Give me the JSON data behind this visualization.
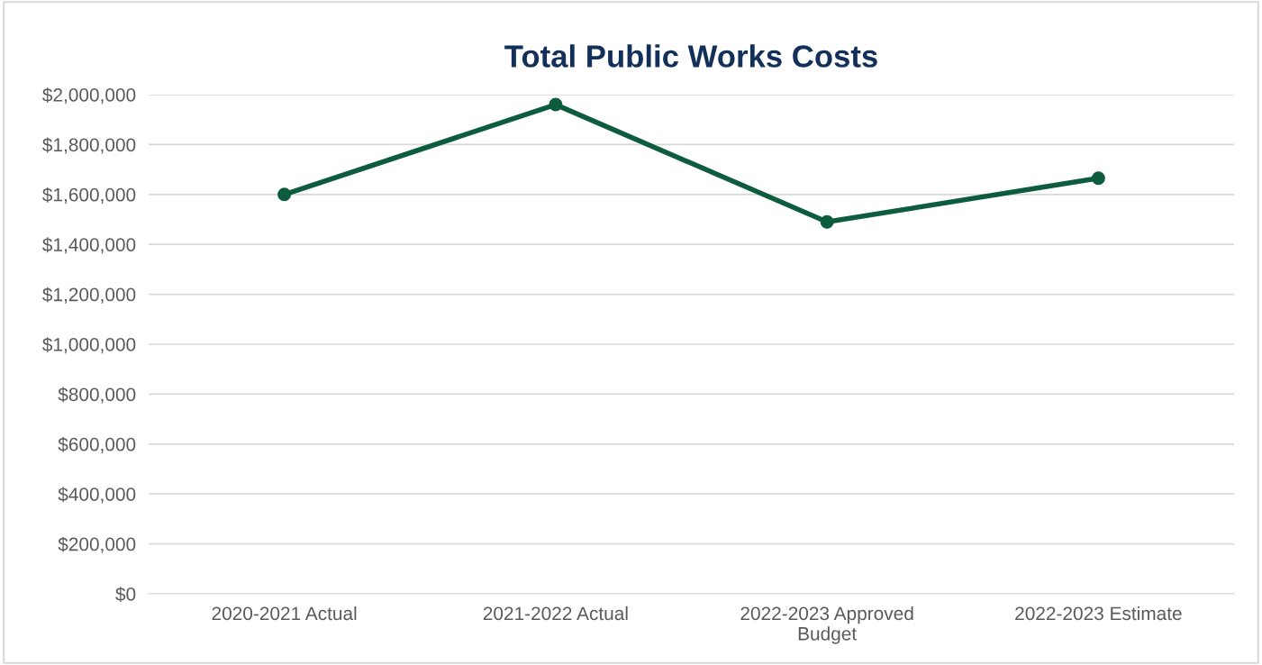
{
  "chart_data": {
    "type": "line",
    "title": "Total Public Works Costs",
    "categories": [
      "2020-2021 Actual",
      "2021-2022 Actual",
      "2022-2023 Approved\nBudget",
      "2022-2023 Estimate"
    ],
    "series": [
      {
        "color": "#0d5c3e",
        "values": [
          1600000,
          1960000,
          1490000,
          1665000
        ]
      }
    ],
    "ylim": [
      0,
      2000000
    ],
    "yticks": [
      {
        "value": 0,
        "label": "$0"
      },
      {
        "value": 200000,
        "label": "$200,000"
      },
      {
        "value": 400000,
        "label": "$400,000"
      },
      {
        "value": 600000,
        "label": "$600,000"
      },
      {
        "value": 800000,
        "label": "$800,000"
      },
      {
        "value": 1000000,
        "label": "$1,000,000"
      },
      {
        "value": 1200000,
        "label": "$1,200,000"
      },
      {
        "value": 1400000,
        "label": "$1,400,000"
      },
      {
        "value": 1600000,
        "label": "$1,600,000"
      },
      {
        "value": 1800000,
        "label": "$1,800,000"
      },
      {
        "value": 2000000,
        "label": "$2,000,000"
      }
    ],
    "grid": "y",
    "marker": "circle",
    "line_style": "solid",
    "legend": false
  }
}
